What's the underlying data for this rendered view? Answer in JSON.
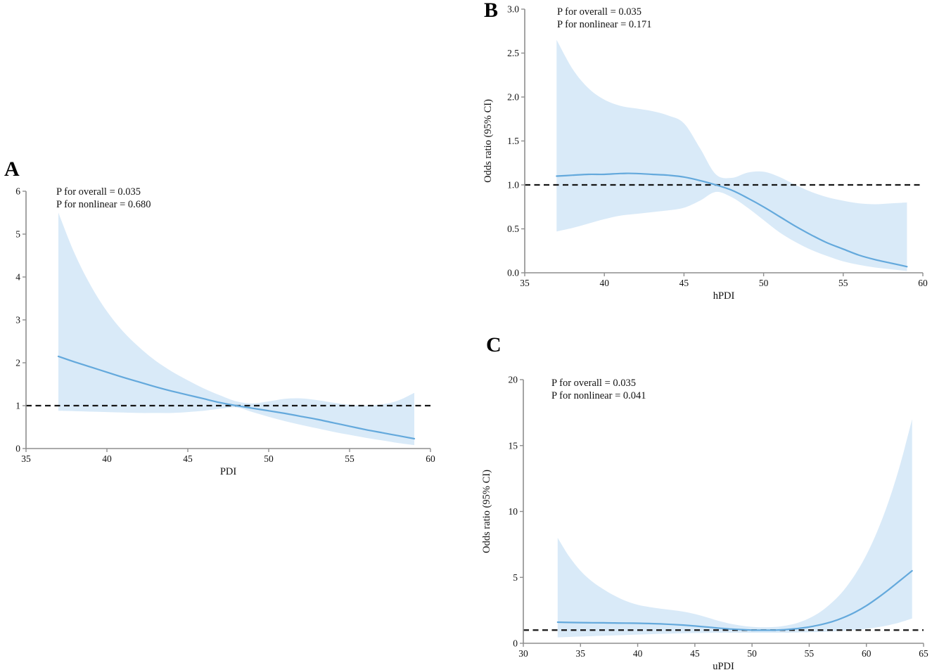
{
  "figure": {
    "background": "#ffffff"
  },
  "colors": {
    "curve": "#64a9dc",
    "band": "#d9eaf8",
    "reference_line": "#161616",
    "axis": "#8e8e8e",
    "text": "#111111"
  },
  "chart_data": [
    {
      "type": "line",
      "panel_label": "A",
      "xlabel": "PDI",
      "ylabel": "Odds ratio (95% CI)",
      "annotations": [
        "P for overall = 0.035",
        "P for nonlinear = 0.680"
      ],
      "xlim": [
        35,
        60
      ],
      "ylim": [
        0,
        6
      ],
      "xtick_labels": [
        "35",
        "40",
        "45",
        "50",
        "55",
        "60"
      ],
      "xtick_values": [
        35,
        40,
        45,
        50,
        55,
        60
      ],
      "ytick_labels": [
        "0",
        "1",
        "2",
        "3",
        "4",
        "5",
        "6"
      ],
      "ytick_values": [
        0,
        1,
        2,
        3,
        4,
        5,
        6
      ],
      "reference_line_y": 1,
      "grid": false,
      "legend": false,
      "x": [
        37,
        38,
        39,
        40,
        41,
        42,
        43,
        44,
        45,
        46,
        47,
        48,
        49,
        50,
        51,
        52,
        53,
        54,
        55,
        56,
        57,
        58,
        59
      ],
      "series": [
        {
          "name": "odds-ratio-estimate",
          "values": [
            2.15,
            2.02,
            1.9,
            1.78,
            1.66,
            1.55,
            1.44,
            1.34,
            1.25,
            1.16,
            1.07,
            1.0,
            0.94,
            0.88,
            0.82,
            0.75,
            0.68,
            0.6,
            0.52,
            0.44,
            0.37,
            0.3,
            0.23
          ]
        },
        {
          "name": "ci-upper",
          "values": [
            5.5,
            4.55,
            3.8,
            3.2,
            2.73,
            2.36,
            2.05,
            1.8,
            1.59,
            1.4,
            1.24,
            1.1,
            1.05,
            1.1,
            1.16,
            1.17,
            1.13,
            1.07,
            1.02,
            1.0,
            1.03,
            1.12,
            1.3
          ]
        },
        {
          "name": "ci-lower",
          "values": [
            0.88,
            0.87,
            0.86,
            0.85,
            0.84,
            0.83,
            0.83,
            0.83,
            0.85,
            0.88,
            0.93,
            0.96,
            0.85,
            0.74,
            0.64,
            0.55,
            0.47,
            0.39,
            0.32,
            0.25,
            0.19,
            0.13,
            0.08
          ]
        }
      ]
    },
    {
      "type": "line",
      "panel_label": "B",
      "xlabel": "hPDI",
      "ylabel": "Odds ratio (95% CI)",
      "annotations": [
        "P for overall = 0.035",
        "P for nonlinear = 0.171"
      ],
      "xlim": [
        35,
        60
      ],
      "ylim": [
        0,
        3
      ],
      "xtick_labels": [
        "35",
        "40",
        "45",
        "50",
        "55",
        "60"
      ],
      "xtick_values": [
        35,
        40,
        45,
        50,
        55,
        60
      ],
      "ytick_labels": [
        "0.0",
        "0.5",
        "1.0",
        "1.5",
        "2.0",
        "2.5",
        "3.0"
      ],
      "ytick_values": [
        0,
        0.5,
        1,
        1.5,
        2,
        2.5,
        3
      ],
      "reference_line_y": 1,
      "grid": false,
      "legend": false,
      "x": [
        37,
        38,
        39,
        40,
        41,
        42,
        43,
        44,
        45,
        46,
        47,
        48,
        49,
        50,
        51,
        52,
        53,
        54,
        55,
        56,
        57,
        58,
        59
      ],
      "series": [
        {
          "name": "odds-ratio-estimate",
          "values": [
            1.1,
            1.11,
            1.12,
            1.12,
            1.13,
            1.13,
            1.12,
            1.11,
            1.09,
            1.05,
            1.0,
            0.94,
            0.85,
            0.75,
            0.64,
            0.53,
            0.43,
            0.34,
            0.27,
            0.2,
            0.15,
            0.11,
            0.07
          ]
        },
        {
          "name": "ci-upper",
          "values": [
            2.65,
            2.32,
            2.1,
            1.97,
            1.9,
            1.87,
            1.84,
            1.79,
            1.7,
            1.42,
            1.12,
            1.08,
            1.14,
            1.15,
            1.09,
            1.0,
            0.92,
            0.86,
            0.82,
            0.79,
            0.78,
            0.79,
            0.8
          ]
        },
        {
          "name": "ci-lower",
          "values": [
            0.47,
            0.51,
            0.56,
            0.61,
            0.65,
            0.67,
            0.69,
            0.71,
            0.74,
            0.82,
            0.92,
            0.86,
            0.74,
            0.6,
            0.46,
            0.35,
            0.26,
            0.19,
            0.13,
            0.09,
            0.06,
            0.04,
            0.02
          ]
        }
      ]
    },
    {
      "type": "line",
      "panel_label": "C",
      "xlabel": "uPDI",
      "ylabel": "Odds ratio (95% CI)",
      "annotations": [
        "P for overall = 0.035",
        "P for nonlinear = 0.041"
      ],
      "xlim": [
        30,
        65
      ],
      "ylim": [
        0,
        20
      ],
      "xtick_labels": [
        "30",
        "35",
        "40",
        "45",
        "50",
        "55",
        "60",
        "65"
      ],
      "xtick_values": [
        30,
        35,
        40,
        45,
        50,
        55,
        60,
        65
      ],
      "ytick_labels": [
        "0",
        "5",
        "10",
        "15",
        "20"
      ],
      "ytick_values": [
        0,
        5,
        10,
        15,
        20
      ],
      "reference_line_y": 1,
      "grid": false,
      "legend": false,
      "x": [
        33,
        34,
        35,
        36,
        37,
        38,
        39,
        40,
        41,
        42,
        43,
        44,
        45,
        46,
        47,
        48,
        49,
        50,
        51,
        52,
        53,
        54,
        55,
        56,
        57,
        58,
        59,
        60,
        61,
        62,
        63,
        64
      ],
      "series": [
        {
          "name": "odds-ratio-estimate",
          "values": [
            1.6,
            1.58,
            1.57,
            1.56,
            1.55,
            1.54,
            1.53,
            1.52,
            1.5,
            1.47,
            1.43,
            1.38,
            1.31,
            1.24,
            1.16,
            1.09,
            1.04,
            1.0,
            0.99,
            1.0,
            1.04,
            1.12,
            1.24,
            1.41,
            1.64,
            1.95,
            2.35,
            2.85,
            3.45,
            4.1,
            4.8,
            5.5
          ]
        },
        {
          "name": "ci-upper",
          "values": [
            8.0,
            6.6,
            5.5,
            4.7,
            4.1,
            3.6,
            3.2,
            2.92,
            2.75,
            2.63,
            2.52,
            2.4,
            2.22,
            1.98,
            1.72,
            1.5,
            1.35,
            1.25,
            1.21,
            1.24,
            1.35,
            1.55,
            1.9,
            2.4,
            3.1,
            4.0,
            5.2,
            6.7,
            8.6,
            10.9,
            13.7,
            17.0
          ]
        },
        {
          "name": "ci-lower",
          "values": [
            0.45,
            0.48,
            0.51,
            0.54,
            0.57,
            0.6,
            0.63,
            0.66,
            0.69,
            0.72,
            0.74,
            0.76,
            0.78,
            0.79,
            0.8,
            0.8,
            0.8,
            0.8,
            0.8,
            0.8,
            0.8,
            0.82,
            0.84,
            0.86,
            0.9,
            0.95,
            1.0,
            1.1,
            1.22,
            1.38,
            1.6,
            1.88
          ]
        }
      ]
    }
  ]
}
